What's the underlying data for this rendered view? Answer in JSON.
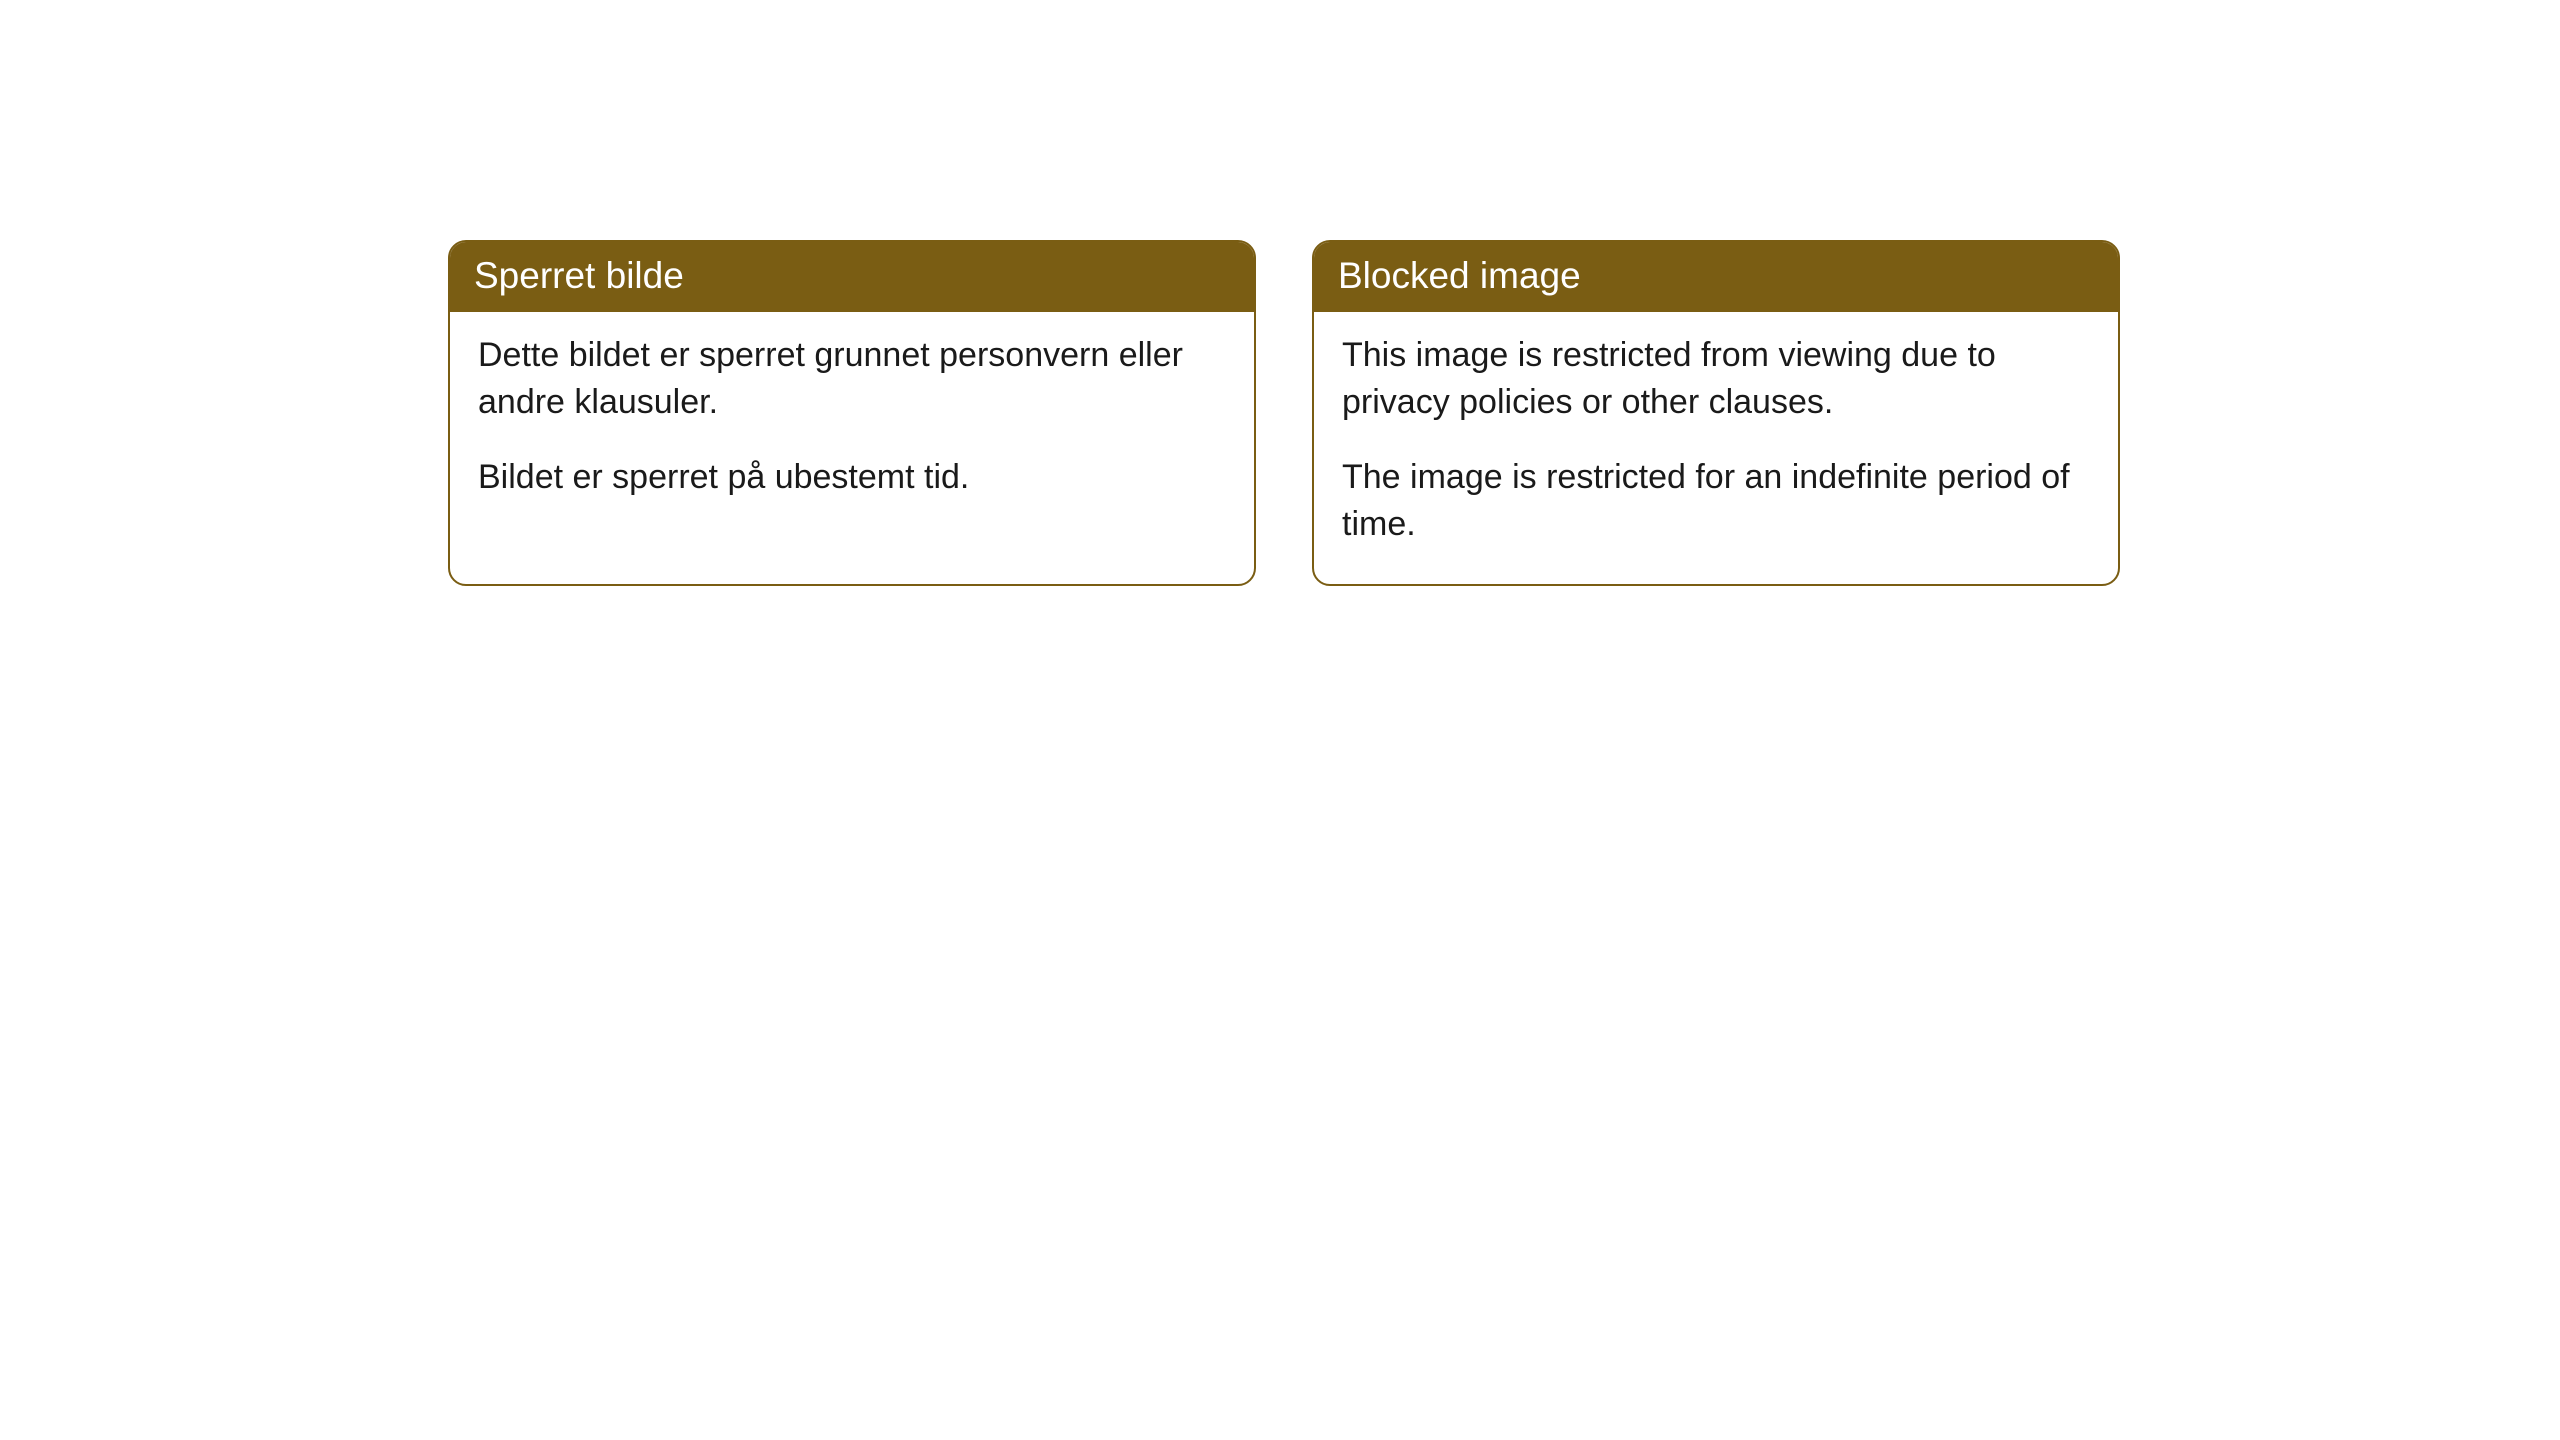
{
  "cards": [
    {
      "title": "Sperret bilde",
      "paragraph1": "Dette bildet er sperret grunnet personvern eller andre klausuler.",
      "paragraph2": "Bildet er sperret på ubestemt tid."
    },
    {
      "title": "Blocked image",
      "paragraph1": "This image is restricted from viewing due to privacy policies or other clauses.",
      "paragraph2": "The image is restricted for an indefinite period of time."
    }
  ],
  "style": {
    "header_bg": "#7a5d13",
    "header_color": "#ffffff",
    "border_color": "#7a5d13",
    "body_bg": "#ffffff",
    "body_color": "#1a1a1a",
    "border_radius": 18,
    "header_fontsize": 37,
    "body_fontsize": 34
  }
}
